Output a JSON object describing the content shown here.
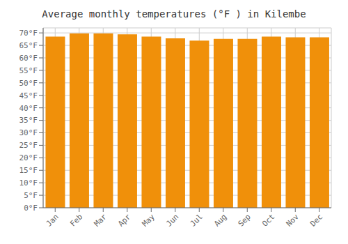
{
  "chart_data": {
    "type": "bar",
    "title": "Average monthly temperatures (°F ) in Kilembe",
    "categories": [
      "Jan",
      "Feb",
      "Mar",
      "Apr",
      "May",
      "Jun",
      "Jul",
      "Aug",
      "Sep",
      "Oct",
      "Nov",
      "Dec"
    ],
    "values": [
      68.5,
      69.8,
      69.8,
      69.4,
      68.5,
      67.8,
      66.9,
      67.6,
      67.6,
      68.5,
      68.2,
      68.2
    ],
    "color": "#F0900A",
    "ylim": [
      0,
      72
    ],
    "yticks": [
      {
        "value": 0,
        "label": "0°F"
      },
      {
        "value": 5,
        "label": "5°F"
      },
      {
        "value": 10,
        "label": "10°F"
      },
      {
        "value": 15,
        "label": "15°F"
      },
      {
        "value": 20,
        "label": "20°F"
      },
      {
        "value": 25,
        "label": "25°F"
      },
      {
        "value": 30,
        "label": "30°F"
      },
      {
        "value": 35,
        "label": "35°F"
      },
      {
        "value": 40,
        "label": "40°F"
      },
      {
        "value": 45,
        "label": "45°F"
      },
      {
        "value": 50,
        "label": "50°F"
      },
      {
        "value": 55,
        "label": "55°F"
      },
      {
        "value": 60,
        "label": "60°F"
      },
      {
        "value": 65,
        "label": "65°F"
      },
      {
        "value": 70,
        "label": "70°F"
      }
    ],
    "grid": true
  }
}
